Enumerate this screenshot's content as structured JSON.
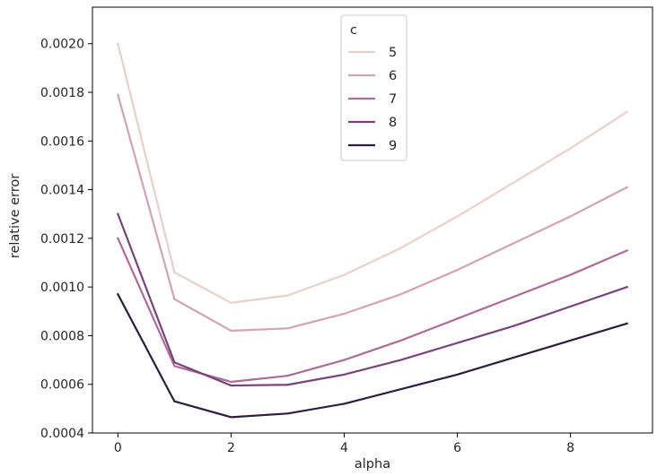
{
  "chart_data": {
    "type": "line",
    "title": "",
    "xlabel": "alpha",
    "ylabel": "relative error",
    "x": [
      0,
      1,
      2,
      3,
      4,
      5,
      6,
      7,
      8,
      9
    ],
    "xlim": [
      -0.45,
      9.45
    ],
    "ylim": [
      0.0004,
      0.00215
    ],
    "xticks": [
      0,
      2,
      4,
      6,
      8
    ],
    "xtick_labels": [
      "0",
      "2",
      "4",
      "6",
      "8"
    ],
    "yticks": [
      0.0004,
      0.0006,
      0.0008,
      0.001,
      0.0012,
      0.0014,
      0.0016,
      0.0018,
      0.002
    ],
    "ytick_labels": [
      "0.0004",
      "0.0006",
      "0.0008",
      "0.0010",
      "0.0012",
      "0.0014",
      "0.0016",
      "0.0018",
      "0.0020"
    ],
    "grid": false,
    "legend": {
      "title": "c",
      "placement": "top-center"
    },
    "series": [
      {
        "name": "5",
        "color": "#ebd0c8",
        "values": [
          0.002,
          0.00106,
          0.000935,
          0.000965,
          0.00105,
          0.00116,
          0.00129,
          0.00143,
          0.00157,
          0.00172
        ]
      },
      {
        "name": "6",
        "color": "#d4a3b3",
        "values": [
          0.00179,
          0.00095,
          0.00082,
          0.00083,
          0.00089,
          0.00097,
          0.00107,
          0.00118,
          0.00129,
          0.00141
        ]
      },
      {
        "name": "7",
        "color": "#ad6b96",
        "values": [
          0.0012,
          0.000675,
          0.00061,
          0.000635,
          0.0007,
          0.00078,
          0.00087,
          0.00096,
          0.00105,
          0.00115
        ]
      },
      {
        "name": "8",
        "color": "#78437a",
        "values": [
          0.0013,
          0.00069,
          0.000595,
          0.000598,
          0.00064,
          0.0007,
          0.00077,
          0.00084,
          0.00092,
          0.001
        ]
      },
      {
        "name": "9",
        "color": "#2d1e3e",
        "values": [
          0.00097,
          0.00053,
          0.000465,
          0.00048,
          0.00052,
          0.00058,
          0.00064,
          0.00071,
          0.00078,
          0.00085
        ]
      }
    ]
  }
}
